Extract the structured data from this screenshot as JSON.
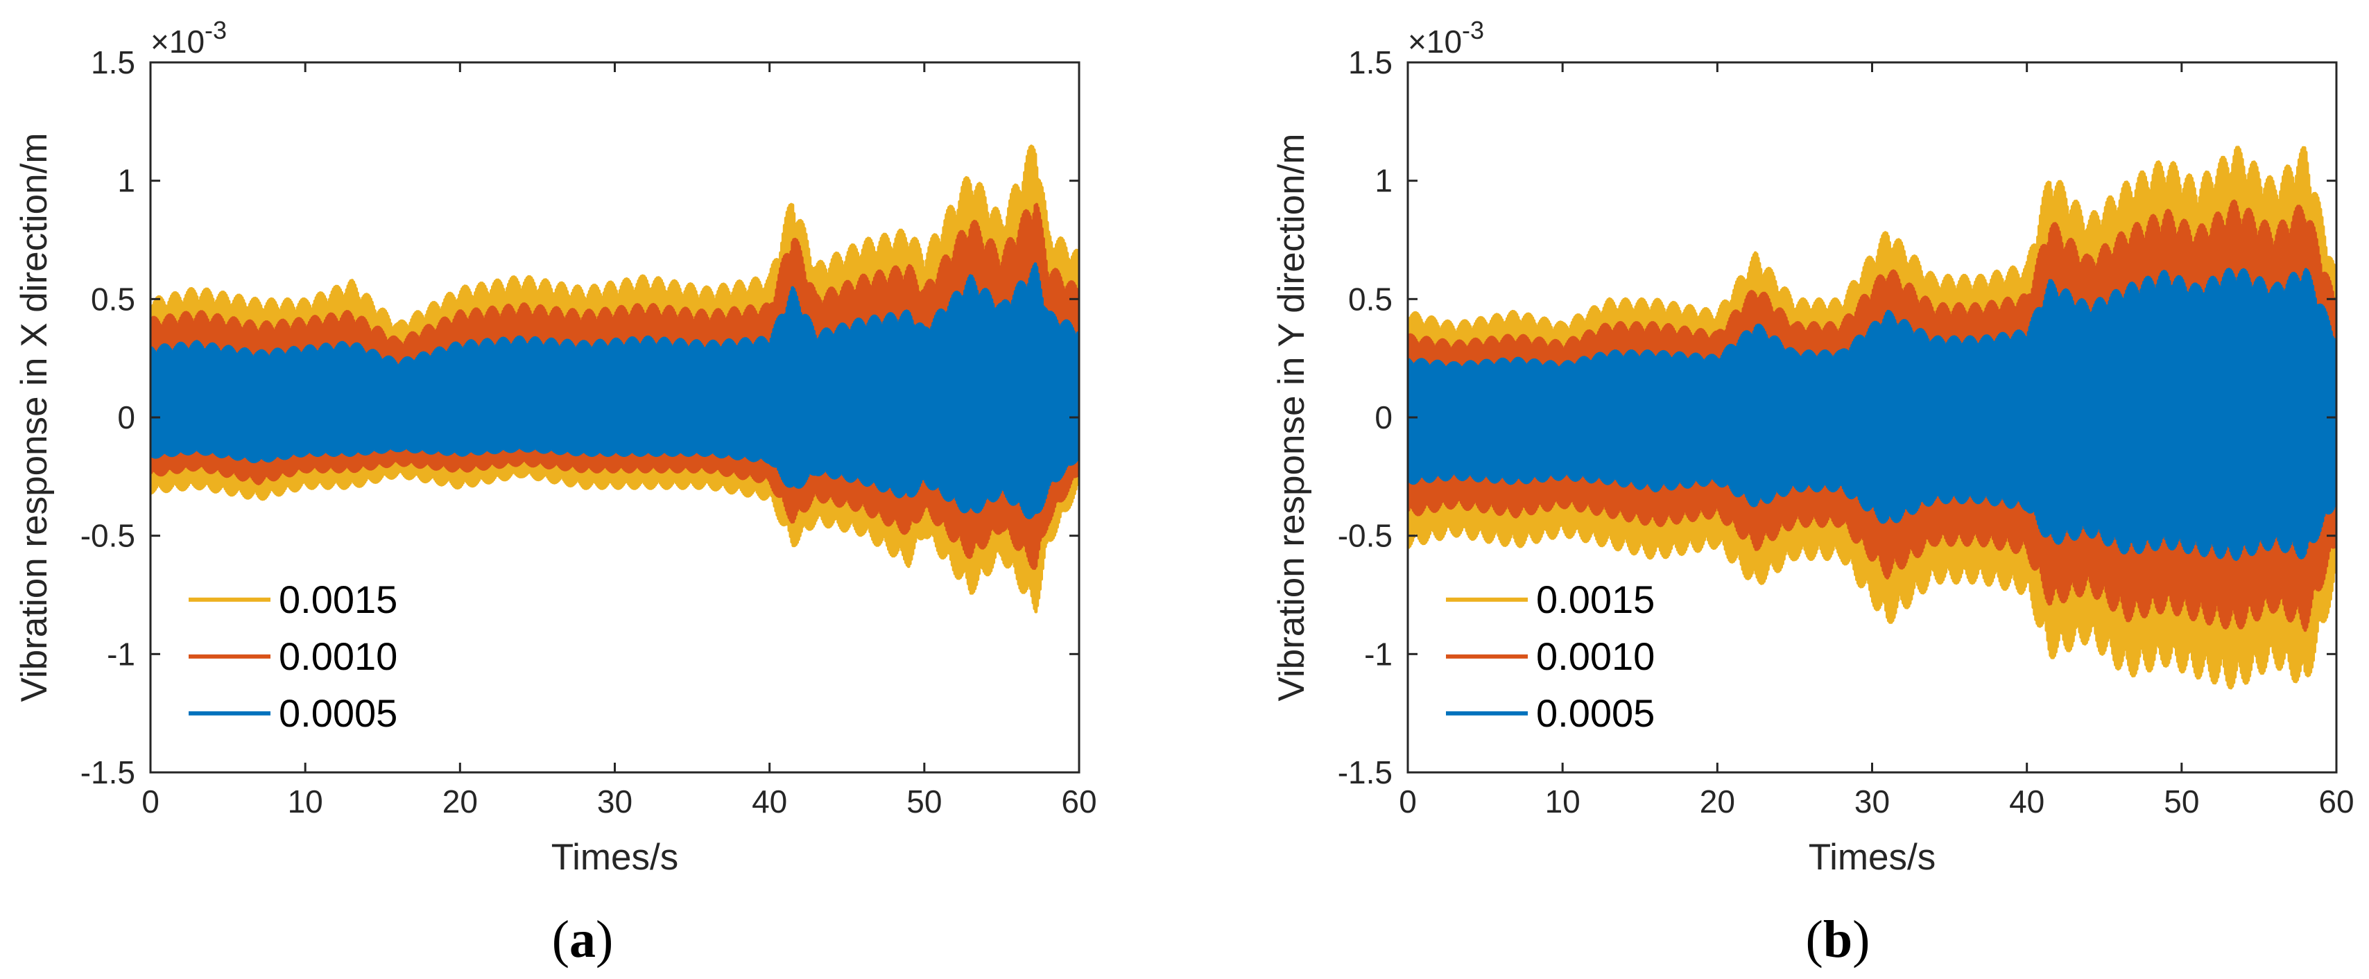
{
  "chart_data": [
    {
      "type": "line",
      "panel": "a",
      "caption_letter": "a",
      "xlabel": "Times/s",
      "ylabel": "Vibration response in X direction/m",
      "xlim": [
        0,
        60
      ],
      "ylim": [
        -1.5,
        1.5
      ],
      "xticks": [
        "0",
        "10",
        "20",
        "30",
        "40",
        "50",
        "60"
      ],
      "yticks": [
        "1.5",
        "1",
        "0.5",
        "0",
        "-0.5",
        "-1",
        "-1.5"
      ],
      "exponent_label": "×10",
      "exponent_power": "-3",
      "legend_location": "bottom-left",
      "series": [
        {
          "name": "0.0015",
          "color": "#EDB120",
          "envelope": {
            "t": [
              0,
              3,
              7,
              10,
              13,
              16,
              20,
              24,
              28,
              32,
              36,
              40,
              41.5,
              43,
              46,
              49,
              50,
              53,
              55,
              57.2,
              58,
              60
            ],
            "upper": [
              0.5,
              0.55,
              0.5,
              0.5,
              0.58,
              0.4,
              0.55,
              0.6,
              0.55,
              0.6,
              0.55,
              0.6,
              0.95,
              0.65,
              0.75,
              0.8,
              0.7,
              1.05,
              0.85,
              1.2,
              0.8,
              0.7
            ],
            "lower": [
              -0.32,
              -0.3,
              -0.35,
              -0.3,
              -0.3,
              -0.25,
              -0.3,
              -0.25,
              -0.3,
              -0.3,
              -0.3,
              -0.35,
              -0.55,
              -0.45,
              -0.5,
              -0.63,
              -0.5,
              -0.75,
              -0.6,
              -0.83,
              -0.55,
              -0.3
            ]
          }
        },
        {
          "name": "0.0010",
          "color": "#D95319",
          "envelope": {
            "t": [
              0,
              3,
              7,
              10,
              13,
              16,
              20,
              24,
              28,
              32,
              36,
              40,
              41.5,
              43,
              46,
              49,
              50,
              53,
              55,
              57.2,
              58,
              60
            ],
            "upper": [
              0.42,
              0.45,
              0.4,
              0.42,
              0.45,
              0.33,
              0.45,
              0.48,
              0.45,
              0.48,
              0.45,
              0.48,
              0.8,
              0.52,
              0.6,
              0.65,
              0.55,
              0.85,
              0.7,
              0.95,
              0.65,
              0.55
            ],
            "lower": [
              -0.25,
              -0.22,
              -0.28,
              -0.23,
              -0.23,
              -0.2,
              -0.23,
              -0.2,
              -0.23,
              -0.23,
              -0.23,
              -0.28,
              -0.45,
              -0.35,
              -0.4,
              -0.5,
              -0.4,
              -0.6,
              -0.48,
              -0.65,
              -0.45,
              -0.24
            ]
          }
        },
        {
          "name": "0.0005",
          "color": "#0072BD",
          "envelope": {
            "t": [
              0,
              3,
              7,
              10,
              13,
              16,
              20,
              24,
              28,
              32,
              36,
              40,
              41.5,
              43,
              46,
              49,
              50,
              53,
              55,
              57.2,
              58,
              60
            ],
            "upper": [
              0.3,
              0.32,
              0.28,
              0.3,
              0.32,
              0.24,
              0.32,
              0.34,
              0.32,
              0.34,
              0.32,
              0.34,
              0.55,
              0.36,
              0.42,
              0.45,
              0.38,
              0.6,
              0.48,
              0.65,
              0.45,
              0.38
            ],
            "lower": [
              -0.17,
              -0.15,
              -0.19,
              -0.16,
              -0.16,
              -0.14,
              -0.16,
              -0.14,
              -0.16,
              -0.16,
              -0.16,
              -0.19,
              -0.32,
              -0.24,
              -0.28,
              -0.35,
              -0.28,
              -0.42,
              -0.33,
              -0.45,
              -0.31,
              -0.17
            ]
          }
        }
      ]
    },
    {
      "type": "line",
      "panel": "b",
      "caption_letter": "b",
      "xlabel": "Times/s",
      "ylabel": "Vibration response in Y direction/m",
      "xlim": [
        0,
        60
      ],
      "ylim": [
        -1.5,
        1.5
      ],
      "xticks": [
        "0",
        "10",
        "20",
        "30",
        "40",
        "50",
        "60"
      ],
      "yticks": [
        "1.5",
        "1",
        "0.5",
        "0",
        "-0.5",
        "-1",
        "-1.5"
      ],
      "exponent_label": "×10",
      "exponent_power": "-3",
      "legend_location": "bottom-left",
      "series": [
        {
          "name": "0.0015",
          "color": "#EDB120",
          "envelope": {
            "t": [
              0,
              3,
              7,
              10,
              13,
              16,
              20,
              22.5,
              25,
              28,
              31,
              34,
              37,
              40,
              41.5,
              44,
              46.5,
              49,
              51,
              53.5,
              56,
              58,
              60
            ],
            "upper": [
              0.45,
              0.4,
              0.45,
              0.4,
              0.5,
              0.5,
              0.45,
              0.7,
              0.5,
              0.5,
              0.8,
              0.6,
              0.6,
              0.65,
              1.05,
              0.85,
              1.0,
              1.1,
              1.0,
              1.15,
              1.0,
              1.15,
              0.6
            ],
            "lower": [
              -0.55,
              -0.5,
              -0.55,
              -0.5,
              -0.55,
              -0.6,
              -0.55,
              -0.72,
              -0.6,
              -0.6,
              -0.88,
              -0.7,
              -0.7,
              -0.75,
              -1.02,
              -0.95,
              -1.1,
              -1.05,
              -1.1,
              -1.15,
              -1.05,
              -1.15,
              -0.7
            ]
          }
        },
        {
          "name": "0.0010",
          "color": "#D95319",
          "envelope": {
            "t": [
              0,
              3,
              7,
              10,
              13,
              16,
              20,
              22.5,
              25,
              28,
              31,
              34,
              37,
              40,
              41.5,
              44,
              46.5,
              49,
              51,
              53.5,
              56,
              58,
              60
            ],
            "upper": [
              0.35,
              0.32,
              0.35,
              0.32,
              0.4,
              0.4,
              0.36,
              0.56,
              0.4,
              0.4,
              0.64,
              0.48,
              0.48,
              0.52,
              0.84,
              0.68,
              0.8,
              0.88,
              0.8,
              0.92,
              0.8,
              0.92,
              0.48
            ],
            "lower": [
              -0.42,
              -0.38,
              -0.42,
              -0.38,
              -0.42,
              -0.46,
              -0.42,
              -0.56,
              -0.46,
              -0.46,
              -0.68,
              -0.54,
              -0.54,
              -0.58,
              -0.8,
              -0.74,
              -0.86,
              -0.82,
              -0.86,
              -0.9,
              -0.82,
              -0.9,
              -0.54
            ]
          }
        },
        {
          "name": "0.0005",
          "color": "#0072BD",
          "envelope": {
            "t": [
              0,
              3,
              7,
              10,
              13,
              16,
              20,
              22.5,
              25,
              28,
              31,
              34,
              37,
              40,
              41.5,
              44,
              46.5,
              49,
              51,
              53.5,
              56,
              58,
              60
            ],
            "upper": [
              0.25,
              0.23,
              0.25,
              0.23,
              0.28,
              0.28,
              0.26,
              0.4,
              0.28,
              0.28,
              0.45,
              0.34,
              0.34,
              0.37,
              0.58,
              0.48,
              0.56,
              0.62,
              0.56,
              0.64,
              0.56,
              0.64,
              0.34
            ],
            "lower": [
              -0.28,
              -0.26,
              -0.28,
              -0.26,
              -0.28,
              -0.31,
              -0.28,
              -0.38,
              -0.31,
              -0.31,
              -0.46,
              -0.36,
              -0.36,
              -0.39,
              -0.54,
              -0.5,
              -0.58,
              -0.55,
              -0.58,
              -0.6,
              -0.55,
              -0.6,
              -0.36
            ]
          }
        }
      ]
    }
  ]
}
